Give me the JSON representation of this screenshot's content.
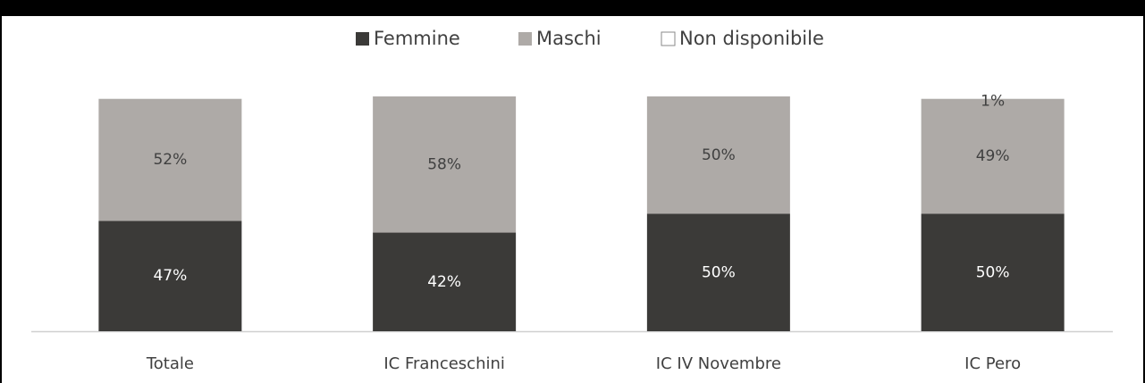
{
  "chart_data": {
    "type": "stacked_bar",
    "categories": [
      "Totale",
      "IC Franceschini",
      "IC IV Novembre",
      "IC Pero"
    ],
    "series": [
      {
        "name": "Femmine",
        "color": "#3b3a38",
        "values": [
          47,
          42,
          50,
          50
        ],
        "value_labels": [
          "47%",
          "42%",
          "50%",
          "50%"
        ]
      },
      {
        "name": "Maschi",
        "color": "#aeaaa7",
        "values": [
          52,
          58,
          50,
          49
        ],
        "value_labels": [
          "52%",
          "58%",
          "50%",
          "49%"
        ]
      },
      {
        "name": "Non disponibile",
        "color": "#ffffff",
        "values": [
          1,
          0,
          0,
          1
        ],
        "value_labels": [
          null,
          null,
          null,
          "1%"
        ]
      }
    ],
    "ylim": [
      0,
      100
    ],
    "legend": "top"
  }
}
